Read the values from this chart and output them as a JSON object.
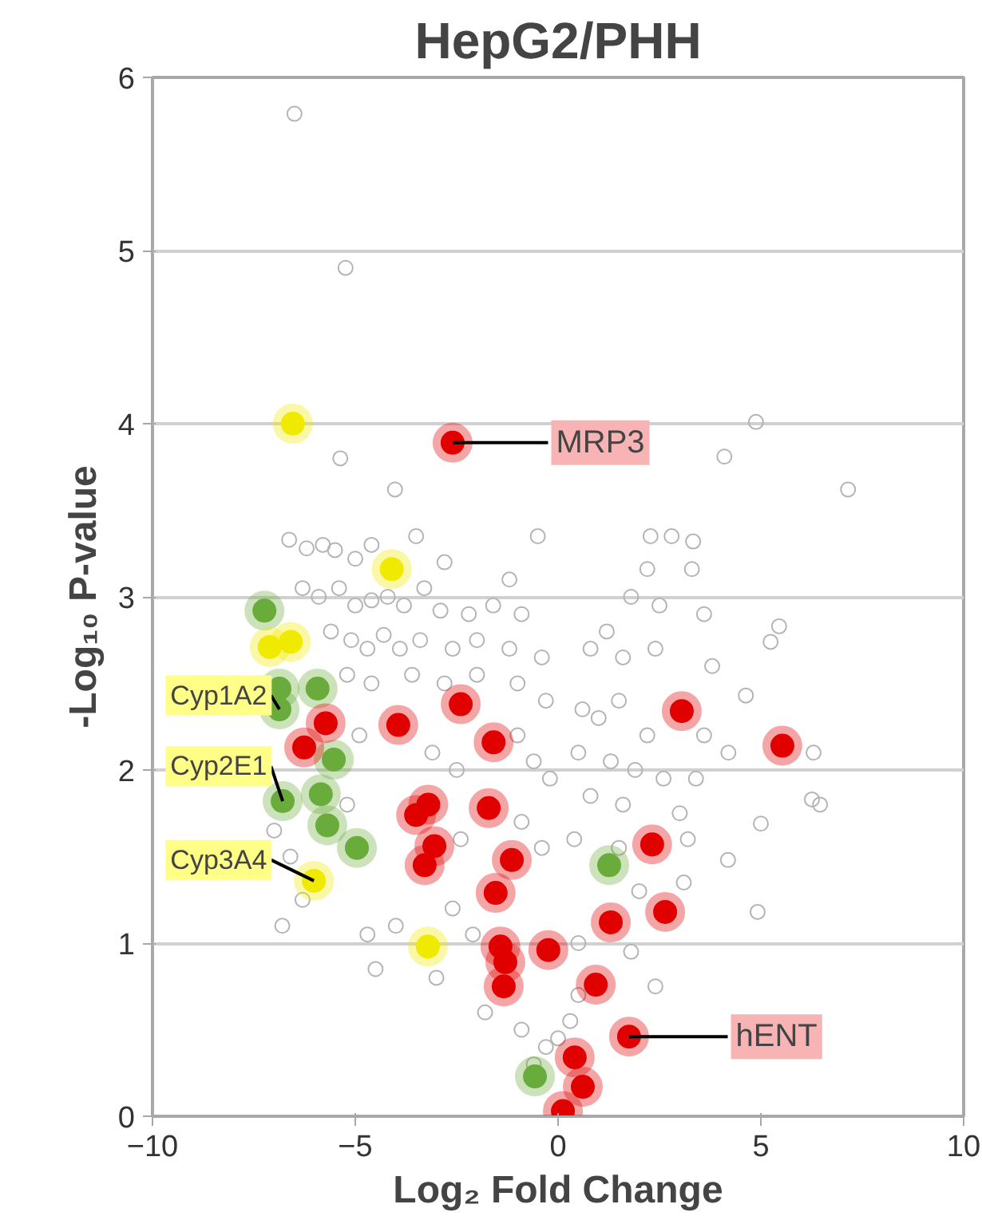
{
  "chart_data": {
    "type": "scatter",
    "title": "HepG2/PHH",
    "xlabel": "Log₂ Fold Change",
    "ylabel": "-Log₁₀ P-value",
    "xlim": [
      -10,
      10
    ],
    "xticks": [
      -10,
      -5,
      0,
      5,
      10
    ],
    "ylim": [
      0,
      6
    ],
    "yticks": [
      0,
      1,
      2,
      3,
      4,
      5,
      6
    ],
    "grid": "y",
    "marker": "circle",
    "annotations": [
      {
        "text": "MRP3",
        "x": -2.6,
        "y": 3.89
      },
      {
        "text": "Cyp1A2",
        "x": -6.87,
        "y": 2.35
      },
      {
        "text": "Cyp2E1",
        "x": -6.79,
        "y": 1.82
      },
      {
        "text": "Cyp3A4",
        "x": -6.02,
        "y": 1.36
      },
      {
        "text": "hENT",
        "x": 1.75,
        "y": 0.46
      }
    ],
    "series": [
      {
        "color": "#b4b4b4",
        "x": [
          -6.5,
          -5.24,
          -5.37,
          -4.02,
          -6.63,
          -6.2,
          -5.8,
          -5.5,
          -5.0,
          -4.6,
          -3.5,
          -2.8,
          -1.2,
          -0.5,
          -6.3,
          -5.9,
          -5.4,
          -5.0,
          -4.6,
          -4.2,
          -3.8,
          -3.3,
          -2.9,
          -2.2,
          -1.6,
          -0.9,
          -5.6,
          -5.1,
          -4.7,
          -4.3,
          -3.9,
          -3.4,
          -2.6,
          -2.0,
          -1.2,
          -0.4,
          -5.2,
          -4.6,
          -3.6,
          -2.8,
          -2.0,
          -1.0,
          -0.3,
          -4.9,
          -3.1,
          -2.5,
          -1.0,
          -0.6,
          -0.2,
          -7.0,
          -6.6,
          -5.2,
          -2.4,
          -0.9,
          -0.4,
          -6.8,
          -6.3,
          -4.7,
          -4.0,
          -2.6,
          -2.1,
          -4.5,
          -3.0,
          -1.8,
          -0.9,
          -0.6,
          -0.3,
          0.0,
          0.3,
          0.5,
          4.88,
          4.1,
          7.15,
          2.28,
          2.8,
          3.33,
          2.2,
          3.3,
          1.8,
          2.5,
          3.6,
          1.2,
          0.8,
          1.6,
          2.4,
          3.8,
          5.45,
          5.24,
          4.63,
          0.6,
          1.0,
          1.5,
          2.2,
          3.6,
          4.2,
          6.3,
          0.5,
          1.3,
          1.9,
          2.6,
          3.4,
          0.8,
          1.6,
          3.0,
          6.26,
          6.46,
          5.0,
          0.4,
          1.5,
          3.2,
          4.19,
          4.92,
          2.0,
          3.1,
          0.5,
          1.8,
          2.4
        ],
        "values": [
          5.79,
          4.9,
          3.8,
          3.62,
          3.33,
          3.28,
          3.3,
          3.27,
          3.22,
          3.3,
          3.35,
          3.2,
          3.1,
          3.35,
          3.05,
          3.0,
          3.05,
          2.95,
          2.98,
          3.0,
          2.95,
          3.05,
          2.92,
          2.9,
          2.95,
          2.9,
          2.8,
          2.75,
          2.7,
          2.78,
          2.7,
          2.75,
          2.7,
          2.75,
          2.7,
          2.65,
          2.55,
          2.5,
          2.55,
          2.5,
          2.55,
          2.5,
          2.4,
          2.2,
          2.1,
          2.0,
          2.2,
          2.05,
          1.95,
          1.65,
          1.5,
          1.8,
          1.6,
          1.7,
          1.55,
          1.1,
          1.25,
          1.05,
          1.1,
          1.2,
          1.05,
          0.85,
          0.8,
          0.6,
          0.5,
          0.3,
          0.4,
          0.45,
          0.55,
          0.7,
          4.01,
          3.81,
          3.62,
          3.35,
          3.35,
          3.32,
          3.16,
          3.16,
          3.0,
          2.95,
          2.9,
          2.8,
          2.7,
          2.65,
          2.7,
          2.6,
          2.83,
          2.74,
          2.43,
          2.35,
          2.3,
          2.4,
          2.2,
          2.2,
          2.1,
          2.1,
          2.1,
          2.05,
          2.0,
          1.95,
          1.95,
          1.85,
          1.8,
          1.75,
          1.83,
          1.8,
          1.69,
          1.6,
          1.55,
          1.6,
          1.48,
          1.18,
          1.3,
          1.35,
          1.0,
          0.95,
          0.75
        ]
      },
      {
        "color": "#6aac3c",
        "x": [
          -7.24,
          -6.87,
          -5.93,
          -6.87,
          -5.53,
          -6.79,
          -5.85,
          -5.69,
          -4.96,
          1.26,
          -0.57
        ],
        "values": [
          2.92,
          2.47,
          2.47,
          2.35,
          2.06,
          1.82,
          1.86,
          1.68,
          1.55,
          1.45,
          0.23
        ]
      },
      {
        "color": "#f0ea00",
        "x": [
          -6.54,
          -4.1,
          -7.11,
          -6.59,
          -6.02,
          -3.21
        ],
        "values": [
          4.0,
          3.16,
          2.71,
          2.74,
          1.36,
          0.98
        ]
      },
      {
        "color": "#e00000",
        "x": [
          -2.6,
          -5.73,
          -6.26,
          -3.94,
          -2.4,
          -1.59,
          -3.5,
          -3.2,
          -3.05,
          -3.29,
          -1.71,
          -1.14,
          -1.54,
          -1.42,
          -1.3,
          -1.34,
          -0.24,
          3.05,
          5.53,
          2.32,
          2.64,
          1.3,
          0.93,
          1.75,
          0.41,
          0.61,
          0.12
        ],
        "values": [
          3.89,
          2.27,
          2.13,
          2.26,
          2.38,
          2.16,
          1.74,
          1.8,
          1.56,
          1.45,
          1.78,
          1.48,
          1.29,
          0.98,
          0.89,
          0.75,
          0.96,
          2.34,
          2.14,
          1.57,
          1.18,
          1.12,
          0.76,
          0.46,
          0.34,
          0.17,
          0.03
        ]
      }
    ]
  }
}
